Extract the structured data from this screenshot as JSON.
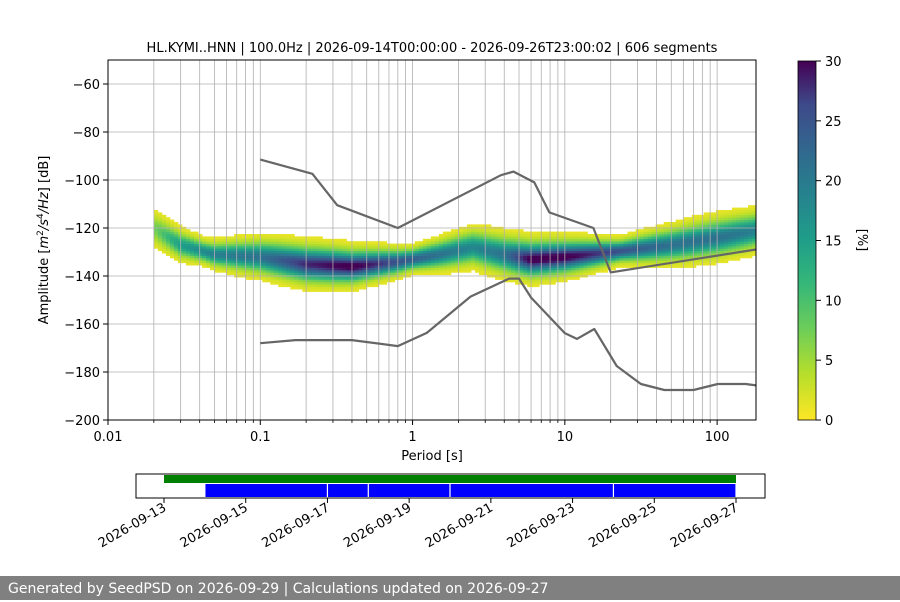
{
  "chart_data": [
    {
      "type": "heatmap",
      "title": "HL.KYMI..HNN | 100.0Hz | 2026-09-14T00:00:00 - 2026-09-26T23:00:02 | 606 segments",
      "xlabel": "Period [s]",
      "ylabel_parts": [
        "Amplitude [",
        "m",
        "2",
        "/",
        "s",
        "4",
        "/",
        "Hz",
        "] [dB]"
      ],
      "x_scale": "log",
      "xlim": [
        0.01,
        180
      ],
      "ylim": [
        -200,
        -50
      ],
      "x_tick_labels": [
        "0.01",
        "0.1",
        "1",
        "10",
        "100"
      ],
      "x_ticks": [
        0.01,
        0.1,
        1,
        10,
        100
      ],
      "y_ticks": [
        -200,
        -180,
        -160,
        -140,
        -120,
        -100,
        -80,
        -60
      ],
      "y_tick_labels": [
        "−200",
        "−180",
        "−160",
        "−140",
        "−120",
        "−100",
        "−80",
        "−60"
      ],
      "grid": true,
      "colormap": "viridis_r",
      "colorbar": {
        "label": "[%]",
        "range": [
          0,
          30
        ],
        "ticks": [
          0,
          5,
          10,
          15,
          20,
          25,
          30
        ],
        "tick_labels": [
          "0",
          "5",
          "10",
          "15",
          "20",
          "25",
          "30"
        ]
      },
      "density_ridge": {
        "period": [
          0.02,
          0.03,
          0.05,
          0.1,
          0.2,
          0.4,
          0.8,
          1.5,
          2.5,
          4,
          6,
          10,
          20,
          50,
          100,
          180
        ],
        "db": [
          -120,
          -127,
          -131,
          -132,
          -135,
          -136,
          -134,
          -131,
          -128,
          -131,
          -133,
          -132,
          -130,
          -127,
          -124,
          -121
        ],
        "peak_percent": [
          6,
          14,
          18,
          20,
          27,
          30,
          24,
          20,
          17,
          20,
          30,
          30,
          25,
          20,
          20,
          18
        ]
      },
      "low_noise_model": {
        "period": [
          0.1,
          0.17,
          0.4,
          0.8,
          1.24,
          2.4,
          4.3,
          5.0,
          6.0,
          10.0,
          12.0,
          15.6,
          21.9,
          31.6,
          45.0,
          70.0,
          101.0,
          154.0,
          180.0
        ],
        "db": [
          -168,
          -166.7,
          -166.7,
          -169.2,
          -163.7,
          -148.6,
          -141.1,
          -141.1,
          -149.0,
          -163.8,
          -166.2,
          -162.1,
          -177.5,
          -185.0,
          -187.5,
          -187.5,
          -185.0,
          -185.0,
          -185.6
        ]
      },
      "high_noise_model": {
        "period": [
          0.1,
          0.22,
          0.32,
          0.8,
          3.8,
          4.6,
          6.3,
          7.9,
          15.4,
          20.0,
          354.8
        ],
        "db": [
          -91.5,
          -97.4,
          -110.5,
          -120.0,
          -98.0,
          -96.5,
          -101.0,
          -113.5,
          -120.0,
          -138.5,
          -126.0
        ]
      }
    },
    {
      "type": "timeline",
      "range": [
        "2026-09-13T00:00",
        "2026-09-27T00:00"
      ],
      "tick_labels": [
        "2026-09-13",
        "2026-09-15",
        "2026-09-17",
        "2026-09-19",
        "2026-09-21",
        "2026-09-23",
        "2026-09-25",
        "2026-09-27"
      ],
      "availability": {
        "color": "#008000",
        "intervals": [
          [
            "2026-09-13T00:00",
            "2026-09-27T00:00"
          ]
        ]
      },
      "psd_segments": {
        "color": "#0000ff",
        "intervals": [
          [
            "2026-09-14T00:00",
            "2026-09-17T00:00"
          ],
          [
            "2026-09-17T00:00",
            "2026-09-18T00:00"
          ],
          [
            "2026-09-18T00:00",
            "2026-09-20T00:00"
          ],
          [
            "2026-09-20T00:00",
            "2026-09-24T00:00"
          ],
          [
            "2026-09-24T00:00",
            "2026-09-27T00:00"
          ]
        ]
      }
    }
  ],
  "footer": {
    "text": "Generated by SeedPSD on 2026-09-29 | Calculations updated on 2026-09-27"
  },
  "colors": {
    "model_line": "#666666",
    "grid": "#b0b0b0",
    "footer_bg": "#808080"
  }
}
